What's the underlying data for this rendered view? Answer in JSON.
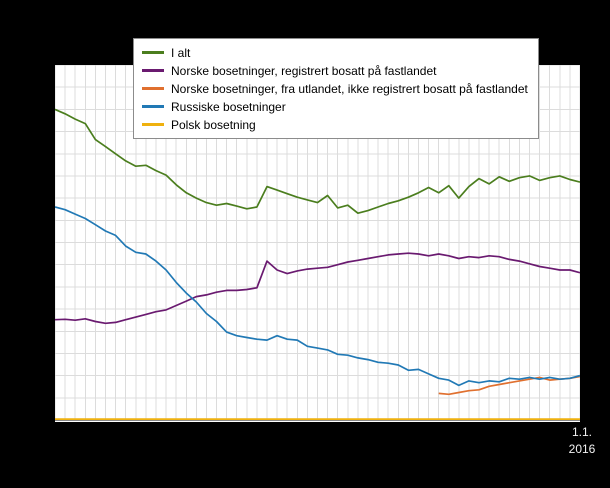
{
  "figure": {
    "background_color": "#000000",
    "plot_background_color": "#ffffff",
    "grid_color": "#dcdcdc",
    "axis_color": "#404040"
  },
  "x_axis": {
    "end_label_line1": "1.1.",
    "end_label_line2": "2016"
  },
  "chart_data": {
    "type": "line",
    "title": "",
    "xlabel": "",
    "ylabel": "",
    "legend_position": "top",
    "grid": true,
    "xlim": [
      1990,
      2016
    ],
    "ylim": [
      0,
      4000
    ],
    "y_grid_step": 250,
    "x_grid_step": 0.5,
    "x": [
      1990,
      1990.5,
      1991,
      1991.5,
      1992,
      1992.5,
      1993,
      1993.5,
      1994,
      1994.5,
      1995,
      1995.5,
      1996,
      1996.5,
      1997,
      1997.5,
      1998,
      1998.5,
      1999,
      1999.5,
      2000,
      2000.5,
      2001,
      2001.5,
      2002,
      2002.5,
      2003,
      2003.5,
      2004,
      2004.5,
      2005,
      2005.5,
      2006,
      2006.5,
      2007,
      2007.5,
      2008,
      2008.5,
      2009,
      2009.5,
      2010,
      2010.5,
      2011,
      2011.5,
      2012,
      2012.5,
      2013,
      2013.5,
      2014,
      2014.5,
      2015,
      2015.5,
      2016
    ],
    "series": [
      {
        "name": "I alt",
        "color": "#4b7e1e",
        "values": [
          3500,
          3450,
          3390,
          3340,
          3160,
          3080,
          3000,
          2920,
          2860,
          2870,
          2810,
          2760,
          2650,
          2560,
          2500,
          2450,
          2420,
          2440,
          2410,
          2380,
          2400,
          2630,
          2590,
          2550,
          2510,
          2480,
          2450,
          2530,
          2390,
          2420,
          2330,
          2360,
          2400,
          2440,
          2470,
          2510,
          2560,
          2620,
          2560,
          2640,
          2500,
          2630,
          2720,
          2660,
          2740,
          2690,
          2730,
          2750,
          2700,
          2730,
          2750,
          2710,
          2680
        ]
      },
      {
        "name": "Norske bosetninger, registrert bosatt på fastlandet",
        "color": "#6a1a70",
        "values": [
          1130,
          1135,
          1125,
          1140,
          1110,
          1090,
          1100,
          1130,
          1160,
          1190,
          1220,
          1240,
          1290,
          1340,
          1390,
          1410,
          1440,
          1460,
          1460,
          1470,
          1490,
          1790,
          1690,
          1650,
          1680,
          1700,
          1710,
          1720,
          1750,
          1780,
          1800,
          1820,
          1840,
          1860,
          1870,
          1880,
          1870,
          1850,
          1870,
          1850,
          1820,
          1840,
          1830,
          1850,
          1840,
          1810,
          1790,
          1760,
          1730,
          1710,
          1690,
          1690,
          1660
        ]
      },
      {
        "name": "Norske bosetninger, fra utlandet, ikke registrert bosatt på fastlandet",
        "color": "#e0702f",
        "values": [
          null,
          null,
          null,
          null,
          null,
          null,
          null,
          null,
          null,
          null,
          null,
          null,
          null,
          null,
          null,
          null,
          null,
          null,
          null,
          null,
          null,
          null,
          null,
          null,
          null,
          null,
          null,
          null,
          null,
          null,
          null,
          null,
          null,
          null,
          null,
          null,
          null,
          null,
          300,
          290,
          310,
          330,
          340,
          380,
          400,
          420,
          440,
          460,
          480,
          450,
          460,
          470,
          490
        ]
      },
      {
        "name": "Russiske bosetninger",
        "color": "#2179b5",
        "values": [
          2400,
          2370,
          2320,
          2270,
          2200,
          2130,
          2080,
          1960,
          1890,
          1870,
          1790,
          1690,
          1550,
          1430,
          1330,
          1200,
          1110,
          990,
          950,
          930,
          910,
          900,
          950,
          910,
          900,
          830,
          810,
          790,
          740,
          730,
          700,
          680,
          650,
          640,
          620,
          560,
          570,
          520,
          470,
          450,
          390,
          440,
          420,
          440,
          430,
          470,
          460,
          480,
          460,
          480,
          460,
          470,
          500
        ]
      },
      {
        "name": "Polsk bosetning",
        "color": "#efb10e",
        "values": [
          10,
          10,
          10,
          10,
          10,
          10,
          10,
          10,
          10,
          10,
          10,
          10,
          10,
          10,
          10,
          10,
          10,
          10,
          10,
          10,
          10,
          10,
          10,
          10,
          10,
          10,
          10,
          10,
          10,
          10,
          10,
          10,
          10,
          10,
          10,
          10,
          10,
          10,
          10,
          10,
          10,
          10,
          10,
          10,
          10,
          10,
          10,
          10,
          10,
          10,
          10,
          10,
          10
        ]
      }
    ]
  }
}
